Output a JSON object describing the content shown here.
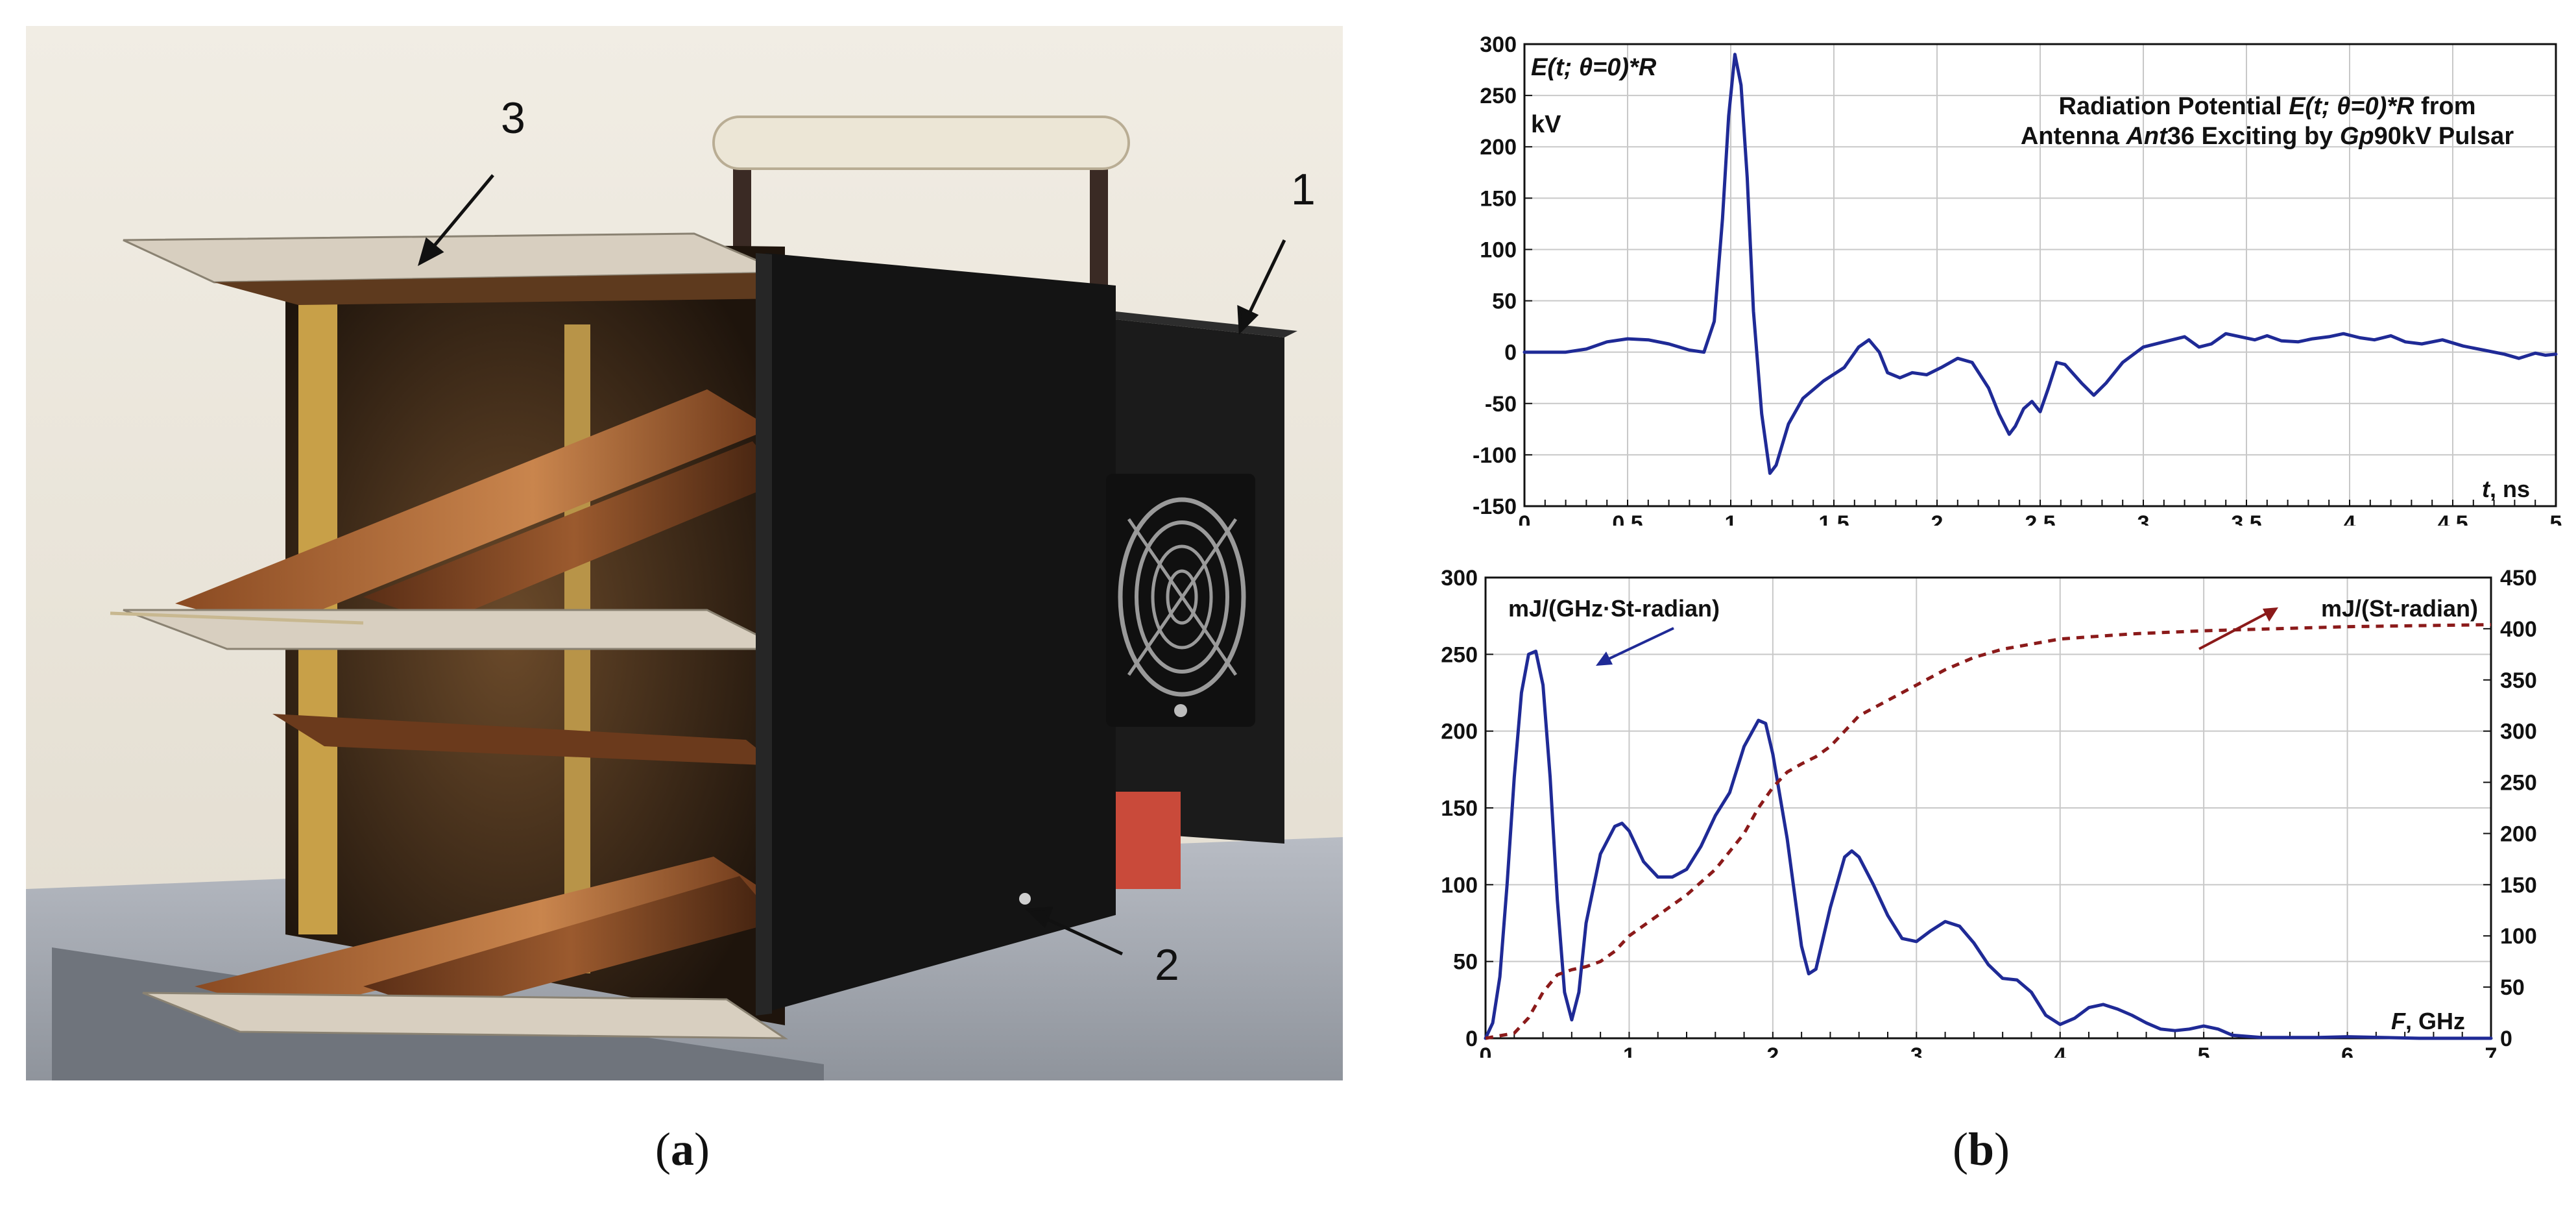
{
  "figure": {
    "panel_a": {
      "caption_open": "(",
      "caption_letter": "a",
      "caption_close": ")",
      "callouts": [
        "1",
        "2",
        "3"
      ]
    },
    "panel_b": {
      "caption_open": "(",
      "caption_letter": "b",
      "caption_close": ")"
    }
  },
  "colors": {
    "series_primary": "#1f2a96",
    "series_secondary": "#8b1a1a",
    "grid": "#c8c8c8",
    "axis": "#111111"
  },
  "chart_data": [
    {
      "type": "line",
      "title_lines": [
        [
          "Radiation Potential ",
          {
            "i": "E(t; "
          },
          {
            "ib": "θ"
          },
          {
            "i": "=0)*R"
          },
          " from"
        ],
        [
          "Antenna ",
          {
            "i": "Ant"
          },
          "36 Exciting by ",
          {
            "i": "Gp"
          },
          "90kV Pulsar"
        ]
      ],
      "ylabel_lines": [
        [
          {
            "i": "E(t; "
          },
          {
            "ib": "θ"
          },
          {
            "i": "=0)*"
          },
          {
            "i": "R"
          }
        ],
        [
          "kV"
        ]
      ],
      "xlabel": [
        {
          "i": "t"
        },
        ", ns"
      ],
      "xlim": [
        0,
        5
      ],
      "ylim": [
        -150,
        300
      ],
      "xticks": [
        0,
        0.5,
        1,
        1.5,
        2,
        2.5,
        3,
        3.5,
        4,
        4.5,
        5
      ],
      "yticks": [
        -150,
        -100,
        -50,
        0,
        50,
        100,
        150,
        200,
        250,
        300
      ],
      "x_minor_step": 0.1,
      "grid": true,
      "series": [
        {
          "style": "solid",
          "points": [
            [
              0,
              0
            ],
            [
              0.2,
              0
            ],
            [
              0.3,
              3
            ],
            [
              0.4,
              10
            ],
            [
              0.5,
              13
            ],
            [
              0.6,
              12
            ],
            [
              0.7,
              8
            ],
            [
              0.8,
              2
            ],
            [
              0.87,
              0
            ],
            [
              0.92,
              30
            ],
            [
              0.96,
              130
            ],
            [
              0.99,
              230
            ],
            [
              1.02,
              290
            ],
            [
              1.05,
              260
            ],
            [
              1.08,
              170
            ],
            [
              1.11,
              40
            ],
            [
              1.15,
              -60
            ],
            [
              1.19,
              -118
            ],
            [
              1.22,
              -110
            ],
            [
              1.28,
              -70
            ],
            [
              1.35,
              -45
            ],
            [
              1.45,
              -28
            ],
            [
              1.55,
              -15
            ],
            [
              1.62,
              5
            ],
            [
              1.67,
              12
            ],
            [
              1.72,
              0
            ],
            [
              1.76,
              -20
            ],
            [
              1.82,
              -25
            ],
            [
              1.88,
              -20
            ],
            [
              1.95,
              -22
            ],
            [
              2.02,
              -15
            ],
            [
              2.1,
              -6
            ],
            [
              2.17,
              -10
            ],
            [
              2.25,
              -35
            ],
            [
              2.3,
              -60
            ],
            [
              2.35,
              -80
            ],
            [
              2.38,
              -72
            ],
            [
              2.42,
              -55
            ],
            [
              2.46,
              -48
            ],
            [
              2.5,
              -58
            ],
            [
              2.54,
              -35
            ],
            [
              2.58,
              -10
            ],
            [
              2.62,
              -12
            ],
            [
              2.7,
              -30
            ],
            [
              2.76,
              -42
            ],
            [
              2.82,
              -30
            ],
            [
              2.9,
              -10
            ],
            [
              3.0,
              5
            ],
            [
              3.1,
              10
            ],
            [
              3.2,
              15
            ],
            [
              3.27,
              5
            ],
            [
              3.33,
              8
            ],
            [
              3.4,
              18
            ],
            [
              3.47,
              15
            ],
            [
              3.54,
              12
            ],
            [
              3.6,
              16
            ],
            [
              3.67,
              11
            ],
            [
              3.75,
              10
            ],
            [
              3.82,
              13
            ],
            [
              3.9,
              15
            ],
            [
              3.97,
              18
            ],
            [
              4.05,
              14
            ],
            [
              4.12,
              12
            ],
            [
              4.2,
              16
            ],
            [
              4.27,
              10
            ],
            [
              4.35,
              8
            ],
            [
              4.45,
              12
            ],
            [
              4.55,
              6
            ],
            [
              4.65,
              2
            ],
            [
              4.75,
              -2
            ],
            [
              4.82,
              -6
            ],
            [
              4.9,
              -1
            ],
            [
              4.95,
              -3
            ],
            [
              5.0,
              -2
            ]
          ]
        }
      ]
    },
    {
      "type": "line",
      "xlabel": [
        {
          "i": "F"
        },
        ",  GHz"
      ],
      "xlim": [
        0,
        7
      ],
      "ylim": [
        0,
        300
      ],
      "y2lim": [
        0,
        450
      ],
      "xticks": [
        0,
        1,
        2,
        3,
        4,
        5,
        6,
        7
      ],
      "yticks": [
        0,
        50,
        100,
        150,
        200,
        250,
        300
      ],
      "y2ticks": [
        0,
        50,
        100,
        150,
        200,
        250,
        300,
        350,
        400,
        450
      ],
      "x_minor_step": 0.2,
      "grid": true,
      "annotations": [
        {
          "text": "mJ/(GHz·St-radian)",
          "series": 0
        },
        {
          "text": "mJ/(St-radian)",
          "series": 1
        }
      ],
      "series": [
        {
          "axis": "left",
          "style": "solid",
          "points": [
            [
              0,
              0
            ],
            [
              0.05,
              10
            ],
            [
              0.1,
              40
            ],
            [
              0.15,
              100
            ],
            [
              0.2,
              170
            ],
            [
              0.25,
              225
            ],
            [
              0.3,
              250
            ],
            [
              0.35,
              252
            ],
            [
              0.4,
              230
            ],
            [
              0.45,
              170
            ],
            [
              0.5,
              90
            ],
            [
              0.55,
              30
            ],
            [
              0.6,
              12
            ],
            [
              0.65,
              30
            ],
            [
              0.7,
              75
            ],
            [
              0.8,
              120
            ],
            [
              0.9,
              138
            ],
            [
              0.95,
              140
            ],
            [
              1.0,
              135
            ],
            [
              1.1,
              115
            ],
            [
              1.2,
              105
            ],
            [
              1.3,
              105
            ],
            [
              1.4,
              110
            ],
            [
              1.5,
              125
            ],
            [
              1.6,
              145
            ],
            [
              1.7,
              160
            ],
            [
              1.8,
              190
            ],
            [
              1.9,
              207
            ],
            [
              1.95,
              205
            ],
            [
              2.0,
              185
            ],
            [
              2.1,
              130
            ],
            [
              2.2,
              60
            ],
            [
              2.25,
              42
            ],
            [
              2.3,
              45
            ],
            [
              2.4,
              85
            ],
            [
              2.5,
              118
            ],
            [
              2.55,
              122
            ],
            [
              2.6,
              118
            ],
            [
              2.7,
              100
            ],
            [
              2.8,
              80
            ],
            [
              2.9,
              65
            ],
            [
              3.0,
              63
            ],
            [
              3.1,
              70
            ],
            [
              3.2,
              76
            ],
            [
              3.3,
              73
            ],
            [
              3.4,
              62
            ],
            [
              3.5,
              48
            ],
            [
              3.6,
              39
            ],
            [
              3.7,
              38
            ],
            [
              3.8,
              30
            ],
            [
              3.9,
              15
            ],
            [
              4.0,
              9
            ],
            [
              4.1,
              13
            ],
            [
              4.2,
              20
            ],
            [
              4.3,
              22
            ],
            [
              4.4,
              19
            ],
            [
              4.5,
              15
            ],
            [
              4.6,
              10
            ],
            [
              4.7,
              6
            ],
            [
              4.8,
              5
            ],
            [
              4.9,
              6
            ],
            [
              5.0,
              8
            ],
            [
              5.1,
              6
            ],
            [
              5.2,
              2
            ],
            [
              5.4,
              0.5
            ],
            [
              5.8,
              0.5
            ],
            [
              6.0,
              1
            ],
            [
              6.5,
              0
            ],
            [
              7.0,
              0
            ]
          ]
        },
        {
          "axis": "right",
          "style": "dashed",
          "points": [
            [
              0,
              0
            ],
            [
              0.2,
              5
            ],
            [
              0.3,
              20
            ],
            [
              0.4,
              45
            ],
            [
              0.5,
              62
            ],
            [
              0.6,
              67
            ],
            [
              0.7,
              70
            ],
            [
              0.8,
              75
            ],
            [
              0.9,
              85
            ],
            [
              1.0,
              100
            ],
            [
              1.2,
              120
            ],
            [
              1.4,
              140
            ],
            [
              1.6,
              165
            ],
            [
              1.8,
              200
            ],
            [
              1.9,
              225
            ],
            [
              2.0,
              245
            ],
            [
              2.1,
              260
            ],
            [
              2.2,
              268
            ],
            [
              2.3,
              275
            ],
            [
              2.4,
              285
            ],
            [
              2.5,
              300
            ],
            [
              2.6,
              315
            ],
            [
              2.8,
              330
            ],
            [
              3.0,
              345
            ],
            [
              3.2,
              360
            ],
            [
              3.4,
              372
            ],
            [
              3.6,
              380
            ],
            [
              3.8,
              385
            ],
            [
              4.0,
              390
            ],
            [
              4.2,
              392
            ],
            [
              4.5,
              395
            ],
            [
              5.0,
              398
            ],
            [
              6.0,
              402
            ],
            [
              7.0,
              404
            ]
          ]
        }
      ]
    }
  ]
}
